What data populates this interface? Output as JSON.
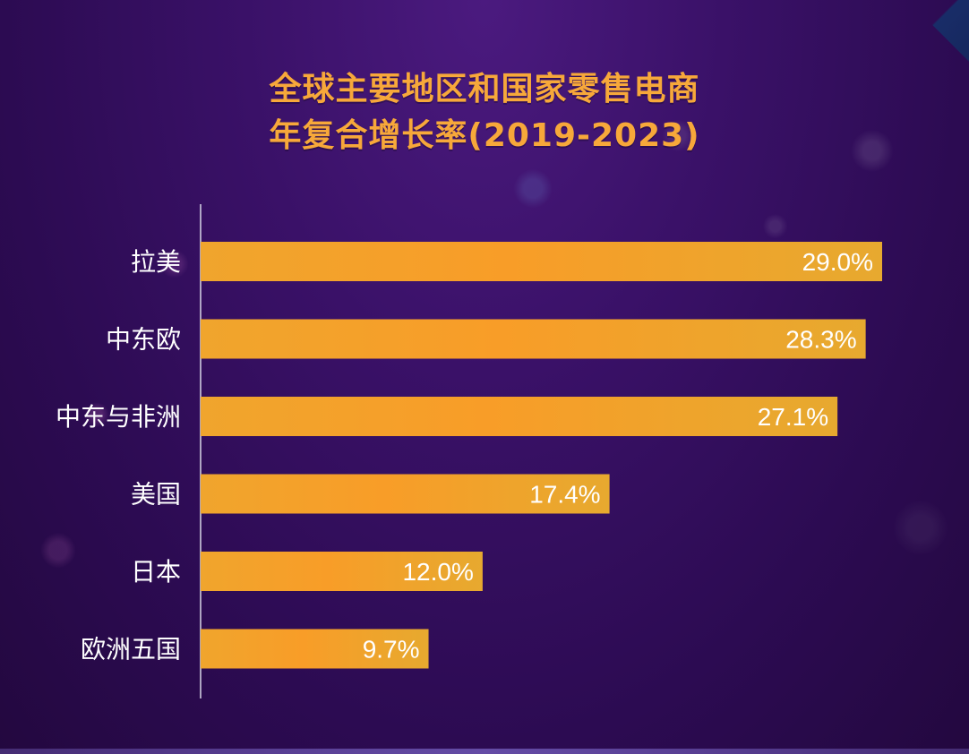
{
  "page": {
    "title_line1": "全球主要地区和国家零售电商",
    "title_line2": "年复合增长率(2019-2023)"
  },
  "chart_data": {
    "type": "bar",
    "orientation": "horizontal",
    "title": "全球主要地区和国家零售电商 年复合增长率(2019-2023)",
    "categories": [
      "拉美",
      "中东欧",
      "中东与非洲",
      "美国",
      "日本",
      "欧洲五国"
    ],
    "values": [
      29.0,
      28.3,
      27.1,
      17.4,
      12.0,
      9.7
    ],
    "value_labels": [
      "29.0%",
      "28.3%",
      "27.1%",
      "17.4%",
      "12.0%",
      "9.7%"
    ],
    "unit": "%",
    "xlim": [
      0,
      29.0
    ],
    "grid": false,
    "legend": "none",
    "bar_color": "#f2a22a",
    "bar_highlight_color": "#ffb340"
  }
}
